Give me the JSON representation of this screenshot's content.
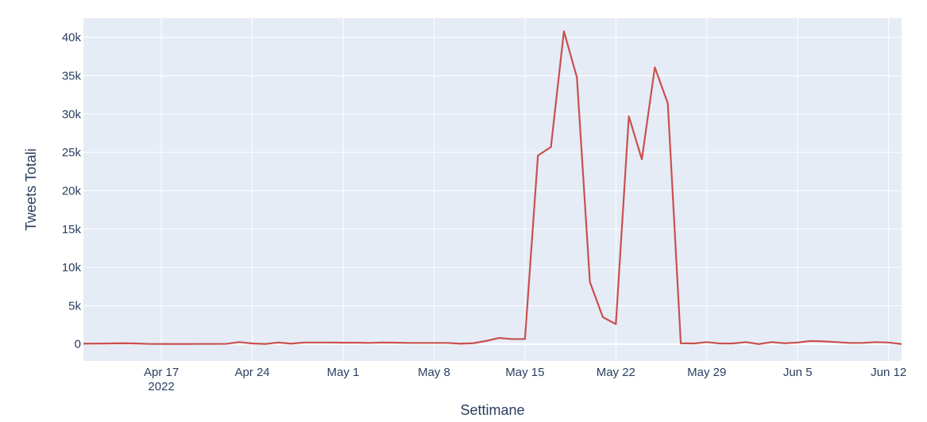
{
  "chart_data": {
    "type": "line",
    "xlabel": "Settimane",
    "ylabel": "Tweets Totali",
    "xlim": [
      "2022-04-11",
      "2022-06-13"
    ],
    "ylim": [
      -2200,
      42500
    ],
    "x_ticks": [
      {
        "date": "2022-04-17",
        "label": "Apr 17",
        "sublabel": "2022"
      },
      {
        "date": "2022-04-24",
        "label": "Apr 24"
      },
      {
        "date": "2022-05-01",
        "label": "May 1"
      },
      {
        "date": "2022-05-08",
        "label": "May 8"
      },
      {
        "date": "2022-05-15",
        "label": "May 15"
      },
      {
        "date": "2022-05-22",
        "label": "May 22"
      },
      {
        "date": "2022-05-29",
        "label": "May 29"
      },
      {
        "date": "2022-06-05",
        "label": "Jun 5"
      },
      {
        "date": "2022-06-12",
        "label": "Jun 12"
      }
    ],
    "y_ticks": [
      {
        "value": 0,
        "label": "0"
      },
      {
        "value": 5000,
        "label": "5k"
      },
      {
        "value": 10000,
        "label": "10k"
      },
      {
        "value": 15000,
        "label": "15k"
      },
      {
        "value": 20000,
        "label": "20k"
      },
      {
        "value": 25000,
        "label": "25k"
      },
      {
        "value": 30000,
        "label": "30k"
      },
      {
        "value": 35000,
        "label": "35k"
      },
      {
        "value": 40000,
        "label": "40k"
      }
    ],
    "series": [
      {
        "color": "#c9504f",
        "points": [
          [
            "2022-04-11",
            50
          ],
          [
            "2022-04-12",
            60
          ],
          [
            "2022-04-13",
            80
          ],
          [
            "2022-04-14",
            100
          ],
          [
            "2022-04-15",
            80
          ],
          [
            "2022-04-16",
            20
          ],
          [
            "2022-04-17",
            10
          ],
          [
            "2022-04-18",
            10
          ],
          [
            "2022-04-19",
            10
          ],
          [
            "2022-04-20",
            20
          ],
          [
            "2022-04-21",
            20
          ],
          [
            "2022-04-22",
            30
          ],
          [
            "2022-04-23",
            250
          ],
          [
            "2022-04-24",
            80
          ],
          [
            "2022-04-25",
            10
          ],
          [
            "2022-04-26",
            200
          ],
          [
            "2022-04-27",
            50
          ],
          [
            "2022-04-28",
            200
          ],
          [
            "2022-04-29",
            200
          ],
          [
            "2022-04-30",
            200
          ],
          [
            "2022-05-01",
            180
          ],
          [
            "2022-05-02",
            180
          ],
          [
            "2022-05-03",
            150
          ],
          [
            "2022-05-04",
            200
          ],
          [
            "2022-05-05",
            180
          ],
          [
            "2022-05-06",
            150
          ],
          [
            "2022-05-07",
            150
          ],
          [
            "2022-05-08",
            150
          ],
          [
            "2022-05-09",
            150
          ],
          [
            "2022-05-10",
            50
          ],
          [
            "2022-05-11",
            100
          ],
          [
            "2022-05-12",
            400
          ],
          [
            "2022-05-13",
            800
          ],
          [
            "2022-05-14",
            650
          ],
          [
            "2022-05-15",
            650
          ],
          [
            "2022-05-16",
            24600
          ],
          [
            "2022-05-17",
            25700
          ],
          [
            "2022-05-18",
            40800
          ],
          [
            "2022-05-19",
            34800
          ],
          [
            "2022-05-20",
            8100
          ],
          [
            "2022-05-21",
            3500
          ],
          [
            "2022-05-22",
            2600
          ],
          [
            "2022-05-23",
            29700
          ],
          [
            "2022-05-24",
            24100
          ],
          [
            "2022-05-25",
            36100
          ],
          [
            "2022-05-26",
            31400
          ],
          [
            "2022-05-27",
            100
          ],
          [
            "2022-05-28",
            80
          ],
          [
            "2022-05-29",
            250
          ],
          [
            "2022-05-30",
            80
          ],
          [
            "2022-05-31",
            80
          ],
          [
            "2022-06-01",
            250
          ],
          [
            "2022-06-02",
            0
          ],
          [
            "2022-06-03",
            250
          ],
          [
            "2022-06-04",
            100
          ],
          [
            "2022-06-05",
            200
          ],
          [
            "2022-06-06",
            400
          ],
          [
            "2022-06-07",
            350
          ],
          [
            "2022-06-08",
            250
          ],
          [
            "2022-06-09",
            150
          ],
          [
            "2022-06-10",
            150
          ],
          [
            "2022-06-11",
            250
          ],
          [
            "2022-06-12",
            200
          ],
          [
            "2022-06-13",
            0
          ]
        ]
      }
    ],
    "grid": true,
    "plot_bg": "#e5ecf6",
    "grid_color": "#ffffff",
    "text_color": "#2a3f5f"
  }
}
